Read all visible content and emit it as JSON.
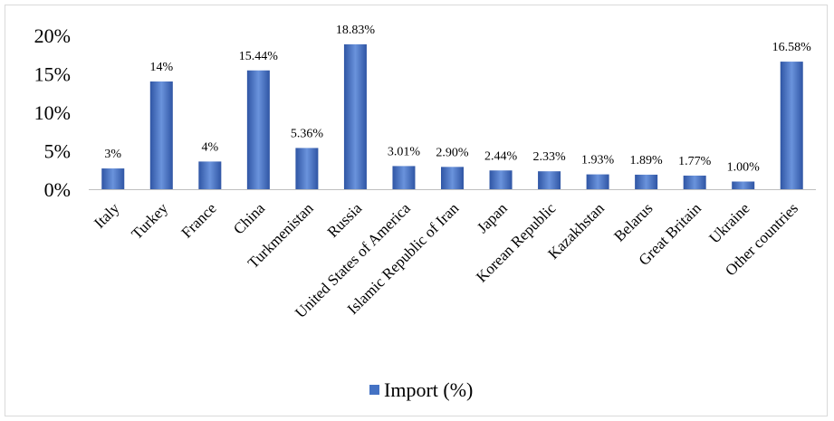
{
  "chart_data": {
    "type": "bar",
    "categories": [
      "Italy",
      "Turkey",
      "France",
      "China",
      "Turkmenistan",
      "Russia",
      "United States of America",
      "Islamic Republic of Iran",
      "Japan",
      "Korean Republic",
      "Kazakhstan",
      "Belarus",
      "Great Britain",
      "Ukraine",
      "Other countries"
    ],
    "series": [
      {
        "name": "Import (%)",
        "values": [
          2.7,
          14,
          3.6,
          15.44,
          5.36,
          18.83,
          3.01,
          2.9,
          2.44,
          2.33,
          1.93,
          1.89,
          1.77,
          1.0,
          16.58
        ],
        "labels": [
          "3%",
          "14%",
          "4%",
          "15.44%",
          "5.36%",
          "18.83%",
          "3.01%",
          "2.90%",
          "2.44%",
          "2.33%",
          "1.93%",
          "1.89%",
          "1.77%",
          "1.00%",
          "16.58%"
        ]
      }
    ],
    "ylim": [
      0,
      20
    ],
    "yticks": [
      0,
      5,
      10,
      15,
      20
    ],
    "ytick_labels": [
      "0%",
      "5%",
      "10%",
      "15%",
      "20%"
    ],
    "title": "",
    "xlabel": "",
    "ylabel": "",
    "grid": false,
    "legend": "bottom-center",
    "colors": {
      "bar": "#4472c4",
      "bar_dark": "#2f55a4",
      "bar_light": "#6a93dc"
    }
  }
}
